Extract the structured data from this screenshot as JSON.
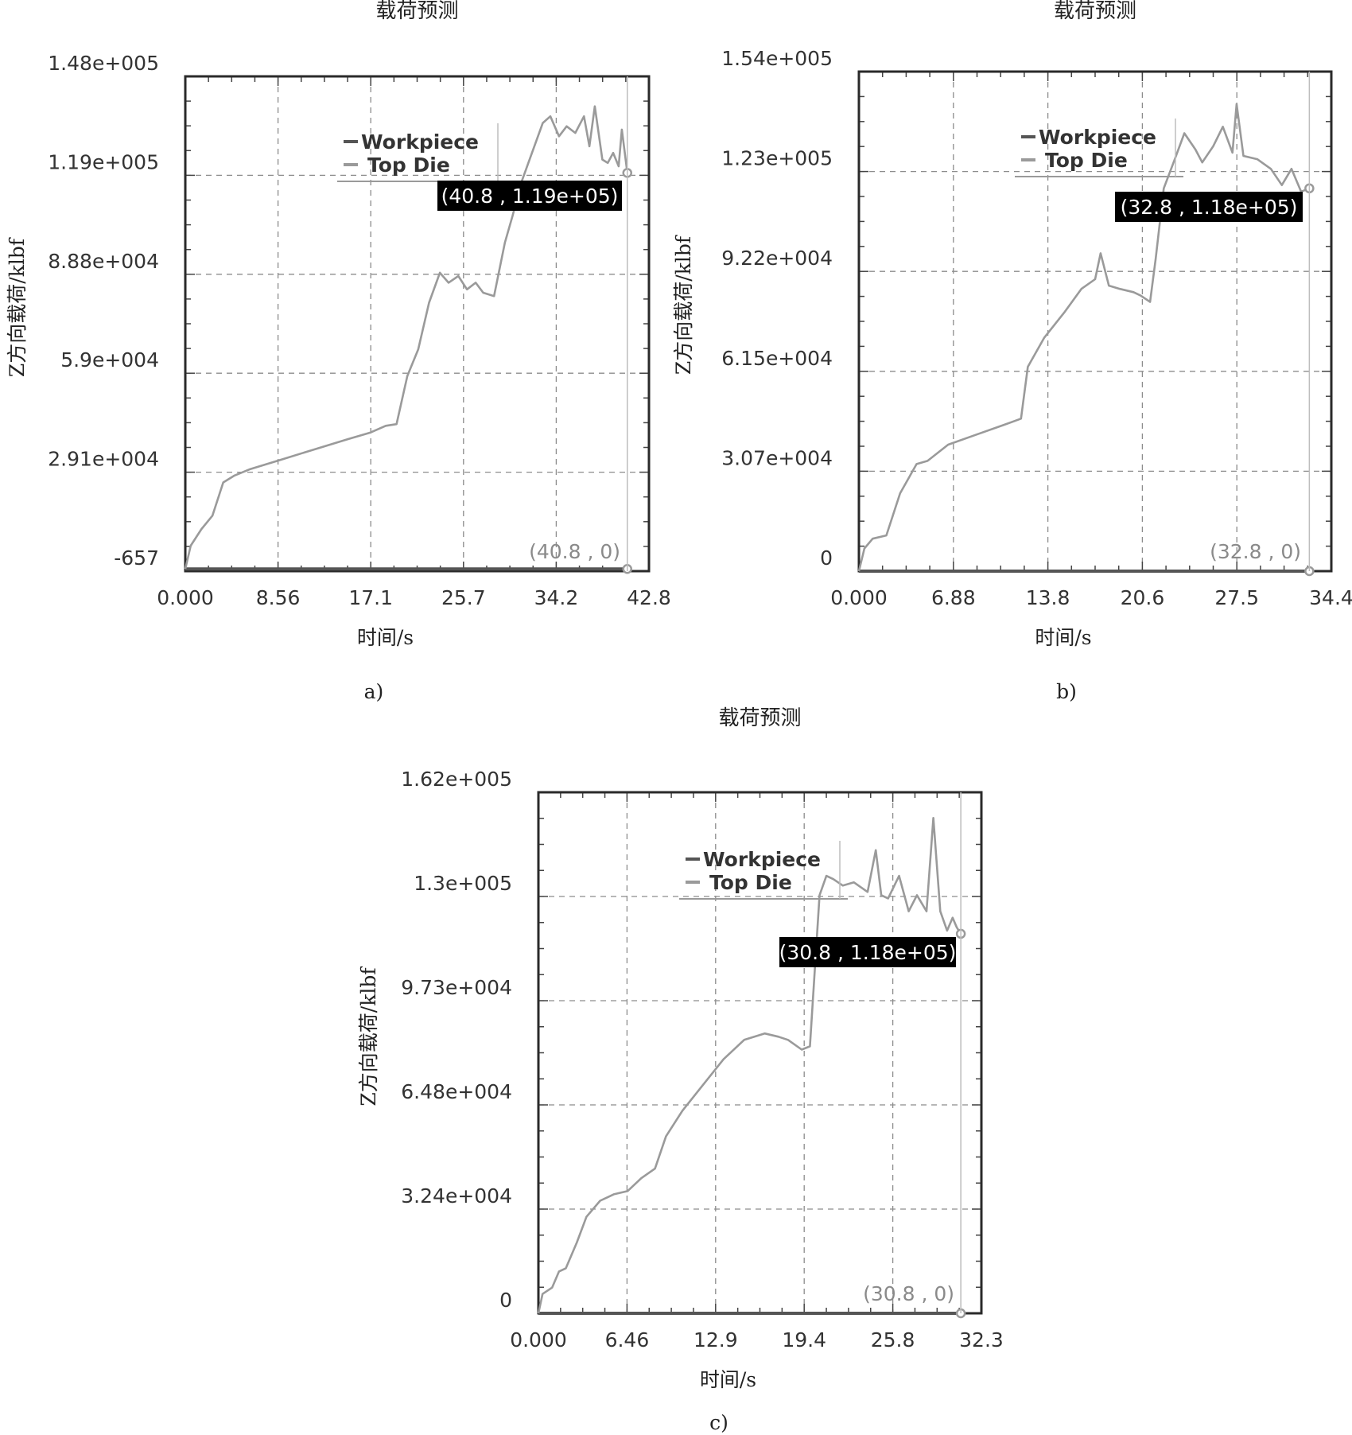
{
  "chart_data": [
    {
      "type": "line",
      "caption": "a)",
      "title": "载荷预测",
      "xlabel": "时间/s",
      "ylabel": "Z方向载荷/klbf",
      "xlim": [
        0,
        42.8
      ],
      "ylim": [
        -657,
        148000
      ],
      "x_ticks": [
        "0.000",
        "8.56",
        "17.1",
        "25.7",
        "34.2",
        "42.8"
      ],
      "y_ticks": [
        "-657",
        "2.91e+004",
        "5.9e+004",
        "8.88e+004",
        "1.19e+005",
        "1.48e+005"
      ],
      "grid": true,
      "legend": {
        "position": "top-center",
        "entries": [
          "Workpiece",
          "Top Die"
        ]
      },
      "annotations": [
        "(40.8 , 1.19e+05)",
        "(40.8 , 0)"
      ],
      "series": [
        {
          "name": "Workpiece",
          "color": "#555555",
          "x": [
            0,
            40.8
          ],
          "y": [
            0,
            0
          ]
        },
        {
          "name": "Top Die",
          "color": "#9a9a9a",
          "x": [
            0,
            0.5,
            1.5,
            2.5,
            3.5,
            4.5,
            6,
            9,
            12,
            15,
            17.1,
            18.5,
            19.5,
            20.5,
            21.5,
            22.5,
            23.5,
            24.3,
            25.2,
            26,
            26.8,
            27.5,
            28.5,
            29.5,
            30.2,
            31,
            32,
            33,
            33.7,
            34.5,
            35.2,
            36,
            36.8,
            37.3,
            37.8,
            38.5,
            39,
            39.5,
            40,
            40.3,
            40.8
          ],
          "y": [
            0,
            7000,
            12000,
            16000,
            26000,
            28000,
            30000,
            33000,
            36000,
            39000,
            41000,
            43000,
            43500,
            58000,
            66000,
            80000,
            89000,
            86000,
            88000,
            84000,
            86000,
            83000,
            82000,
            98000,
            106000,
            116000,
            125000,
            134000,
            136000,
            130000,
            133000,
            131000,
            136000,
            127000,
            139000,
            123000,
            122000,
            125000,
            121000,
            132000,
            119000
          ]
        }
      ]
    },
    {
      "type": "line",
      "caption": "b)",
      "title": "载荷预测",
      "xlabel": "时间/s",
      "ylabel": "Z方向载荷/klbf",
      "xlim": [
        0,
        34.4
      ],
      "ylim": [
        0,
        154000
      ],
      "x_ticks": [
        "0.000",
        "6.88",
        "13.8",
        "20.6",
        "27.5",
        "34.4"
      ],
      "y_ticks": [
        "0",
        "3.07e+004",
        "6.15e+004",
        "9.22e+004",
        "1.23e+005",
        "1.54e+005"
      ],
      "grid": true,
      "legend": {
        "position": "top-center",
        "entries": [
          "Workpiece",
          "Top Die"
        ]
      },
      "annotations": [
        "(32.8 , 1.18e+05)",
        "(32.8 , 0)"
      ],
      "series": [
        {
          "name": "Workpiece",
          "color": "#555555",
          "x": [
            0,
            32.8
          ],
          "y": [
            0,
            0
          ]
        },
        {
          "name": "Top Die",
          "color": "#9a9a9a",
          "x": [
            0,
            0.4,
            1,
            2,
            3,
            4.2,
            5,
            6.5,
            8.5,
            10.5,
            11.8,
            12.3,
            13.5,
            15,
            16.2,
            17.2,
            17.6,
            18.2,
            19,
            20,
            20.5,
            21.2,
            21.6,
            22.2,
            23,
            23.7,
            24.5,
            25,
            25.8,
            26.5,
            27.2,
            27.5,
            28,
            29,
            30,
            30.8,
            31.5,
            32.2,
            32.8
          ],
          "y": [
            0,
            7000,
            10000,
            11000,
            24000,
            33000,
            34000,
            39000,
            42000,
            45000,
            47000,
            63000,
            72000,
            80000,
            87000,
            90000,
            98000,
            88000,
            87000,
            86000,
            85000,
            83000,
            96000,
            118000,
            127000,
            135000,
            130000,
            126000,
            131000,
            137000,
            129000,
            144000,
            128000,
            127000,
            124000,
            119000,
            124000,
            117000,
            118000
          ]
        }
      ]
    },
    {
      "type": "line",
      "caption": "c)",
      "title": "载荷预测",
      "xlabel": "时间/s",
      "ylabel": "Z方向载荷/klbf",
      "xlim": [
        0,
        32.3
      ],
      "ylim": [
        0,
        162000
      ],
      "x_ticks": [
        "0.000",
        "6.46",
        "12.9",
        "19.4",
        "25.8",
        "32.3"
      ],
      "y_ticks": [
        "0",
        "3.24e+004",
        "6.48e+004",
        "9.73e+004",
        "1.3e+005",
        "1.62e+005"
      ],
      "grid": true,
      "legend": {
        "position": "top-center",
        "entries": [
          "Workpiece",
          "Top Die"
        ]
      },
      "annotations": [
        "(30.8 , 1.18e+05)",
        "(30.8 , 0)"
      ],
      "series": [
        {
          "name": "Workpiece",
          "color": "#555555",
          "x": [
            0,
            30.8
          ],
          "y": [
            0,
            0
          ]
        },
        {
          "name": "Top Die",
          "color": "#9a9a9a",
          "x": [
            0,
            0.3,
            1,
            1.5,
            2,
            2.8,
            3.5,
            4.5,
            5.5,
            6.5,
            7.5,
            8.5,
            9.3,
            10.5,
            12,
            13.5,
            15,
            16.5,
            17.5,
            18.2,
            19.2,
            19.8,
            20.5,
            21,
            21.5,
            22.2,
            23,
            24,
            24.6,
            25,
            25.5,
            26.3,
            27,
            27.6,
            28.3,
            28.8,
            29.3,
            29.8,
            30.2,
            30.5,
            30.8
          ],
          "y": [
            0,
            6000,
            8000,
            13000,
            14000,
            22000,
            30000,
            35000,
            37000,
            38000,
            42000,
            45000,
            55000,
            63000,
            71000,
            79000,
            85000,
            87000,
            86000,
            85000,
            82000,
            83000,
            130000,
            136000,
            135000,
            133000,
            134000,
            131000,
            144000,
            130000,
            129000,
            136000,
            125000,
            130000,
            125000,
            154000,
            125000,
            119000,
            123000,
            120000,
            118000
          ]
        }
      ]
    }
  ]
}
